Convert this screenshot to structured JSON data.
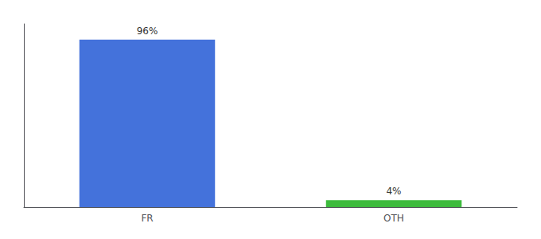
{
  "chart_data": {
    "type": "bar",
    "categories": [
      "FR",
      "OTH"
    ],
    "values": [
      96,
      4
    ],
    "value_labels": [
      "96%",
      "4%"
    ],
    "colors": [
      "#4472db",
      "#3dbb3d"
    ],
    "ylim": [
      0,
      105
    ],
    "grid": false,
    "data_labels": true,
    "tick_labels": "x"
  }
}
